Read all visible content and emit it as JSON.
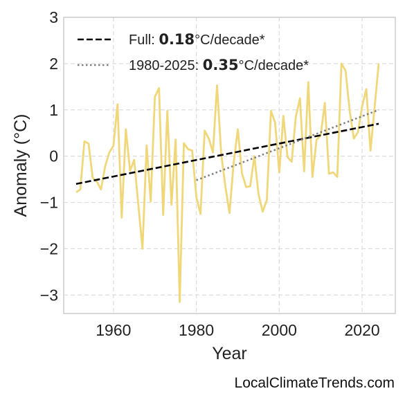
{
  "watermark": "LocalClimateTrends.com",
  "chart_data": {
    "type": "line",
    "title": "",
    "xlabel": "Year",
    "ylabel": "Anomaly (°C)",
    "xlim": [
      1948,
      2028
    ],
    "ylim": [
      -3.4,
      3.0
    ],
    "xticks": [
      1960,
      1980,
      2000,
      2020
    ],
    "yticks": [
      -3,
      -2,
      -1,
      0,
      1,
      2,
      3
    ],
    "ytick_labels": [
      "−3",
      "−2",
      "−1",
      "0",
      "1",
      "2",
      "3"
    ],
    "grid": true,
    "legend_position": "top-left",
    "colors": {
      "anomaly": "#f0d77a",
      "full_trend": "#000000",
      "recent_trend": "#808080",
      "grid": "#dddddd",
      "frame": "#cccccc"
    },
    "series": [
      {
        "type": "line",
        "x": [
          1951,
          1952,
          1953,
          1954,
          1955,
          1956,
          1957,
          1958,
          1959,
          1960,
          1961,
          1962,
          1963,
          1964,
          1965,
          1966,
          1967,
          1968,
          1969,
          1970,
          1971,
          1972,
          1973,
          1974,
          1975,
          1976,
          1977,
          1978,
          1979,
          1980,
          1981,
          1982,
          1983,
          1984,
          1985,
          1986,
          1987,
          1988,
          1989,
          1990,
          1991,
          1992,
          1993,
          1994,
          1995,
          1996,
          1997,
          1998,
          1999,
          2000,
          2001,
          2002,
          2003,
          2004,
          2005,
          2006,
          2007,
          2008,
          2009,
          2010,
          2011,
          2012,
          2013,
          2014,
          2015,
          2016,
          2017,
          2018,
          2019,
          2020,
          2021,
          2022,
          2023,
          2024
        ],
        "y": [
          -0.78,
          -0.72,
          0.32,
          0.27,
          -0.47,
          -0.55,
          -0.72,
          -0.22,
          0.08,
          0.22,
          1.12,
          -1.33,
          0.58,
          -0.32,
          -0.08,
          -1.05,
          -2.0,
          0.23,
          -0.98,
          1.28,
          1.47,
          -1.27,
          0.98,
          -1.05,
          0.36,
          -3.15,
          0.28,
          0.15,
          0.12,
          -0.88,
          -1.25,
          0.55,
          0.38,
          0.08,
          1.53,
          0.05,
          -0.65,
          -1.23,
          -0.15,
          0.58,
          -0.37,
          -0.67,
          -0.65,
          0.0,
          -0.82,
          -1.2,
          -0.95,
          0.98,
          0.72,
          -0.35,
          0.87,
          -0.02,
          -0.12,
          0.85,
          1.25,
          -0.33,
          1.6,
          -0.45,
          0.35,
          0.45,
          1.15,
          -0.38,
          -0.35,
          -0.45,
          2.0,
          1.85,
          0.98,
          0.38,
          0.52,
          1.08,
          1.45,
          0.12,
          1.05,
          2.0
        ]
      },
      {
        "name": "Full",
        "type": "trend",
        "style": "dashed",
        "x": [
          1951,
          2024
        ],
        "y": [
          -0.6,
          0.7
        ],
        "rate": "0.18"
      },
      {
        "name": "1980-2025",
        "type": "trend",
        "style": "dotted",
        "x": [
          1980,
          2024
        ],
        "y": [
          -0.52,
          1.0
        ],
        "rate": "0.35"
      }
    ],
    "legend": [
      {
        "prefix": "Full: ",
        "rate": "0.18",
        "suffix": "°C/decade*"
      },
      {
        "prefix": "1980-2025: ",
        "rate": "0.35",
        "suffix": "°C/decade*"
      }
    ]
  }
}
